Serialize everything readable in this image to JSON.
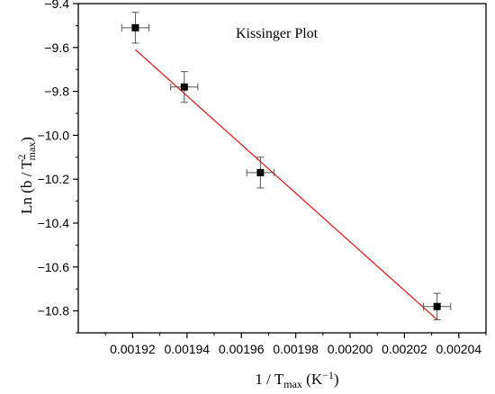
{
  "chart_data": {
    "type": "scatter",
    "title": "",
    "annotation": "Kissinger Plot",
    "xlabel": {
      "main": "1 / T",
      "sub": "max",
      "unit_open": " (K",
      "unit_sup": "−1",
      "unit_close": ")"
    },
    "ylabel": {
      "main": "Ln (b / T",
      "sup": "2",
      "sub": "max",
      "close": ")"
    },
    "xlim": [
      0.0019,
      0.00205
    ],
    "ylim": [
      -10.9,
      -9.4
    ],
    "x_ticks": [
      0.00192,
      0.00194,
      0.00196,
      0.00198,
      0.002,
      0.00202,
      0.00204
    ],
    "x_tick_labels": [
      "0.00192",
      "0.00194",
      "0.00196",
      "0.00198",
      "0.00200",
      "0.00202",
      "0.00204"
    ],
    "y_ticks": [
      -9.4,
      -9.6,
      -9.8,
      -10.0,
      -10.2,
      -10.4,
      -10.6,
      -10.8
    ],
    "y_tick_labels": [
      "−9.4",
      "−9.6",
      "−9.8",
      "−10.0",
      "−10.2",
      "−10.4",
      "−10.6",
      "−10.8"
    ],
    "grid": false,
    "series": [
      {
        "marker": "square",
        "color": "#000000",
        "points": [
          {
            "x": 0.001921,
            "y": -9.51,
            "xerr": 5e-06,
            "yerr": 0.07
          },
          {
            "x": 0.001939,
            "y": -9.78,
            "xerr": 5e-06,
            "yerr": 0.07
          },
          {
            "x": 0.001967,
            "y": -10.17,
            "xerr": 5e-06,
            "yerr": 0.07
          },
          {
            "x": 0.002032,
            "y": -10.78,
            "xerr": 5e-06,
            "yerr": 0.06
          }
        ]
      }
    ],
    "fit_line": {
      "color": "#e01010",
      "x": [
        0.001921,
        0.002032
      ],
      "y": [
        -9.61,
        -10.84
      ]
    }
  }
}
